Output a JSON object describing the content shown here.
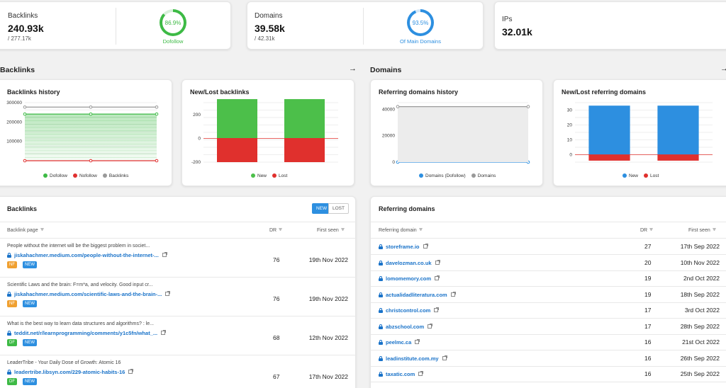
{
  "stats": {
    "backlinks": {
      "label": "Backlinks",
      "value": "240.93k",
      "sub": "/ 277.17k",
      "ring_value": "86.9%",
      "ring_label": "Dofollow",
      "ring_fraction": 0.869,
      "ring_color": "#3dba45"
    },
    "domains": {
      "label": "Domains",
      "value": "39.58k",
      "sub": "/ 42.31k",
      "ring_value": "93.5%",
      "ring_label": "Of Main Domains",
      "ring_fraction": 0.935,
      "ring_color": "#2d8fe0"
    },
    "ips": {
      "label": "IPs",
      "value": "32.01k"
    }
  },
  "sections": {
    "backlinks": {
      "title": "Backlinks",
      "arrow": "→"
    },
    "domains": {
      "title": "Domains",
      "arrow": "→"
    }
  },
  "cards": {
    "backlinks_history": {
      "title": "Backlinks history",
      "legend": [
        "Dofollow",
        "Nofollow",
        "Backlinks"
      ]
    },
    "new_lost_backlinks": {
      "title": "New/Lost backlinks",
      "legend": [
        "New",
        "Lost"
      ]
    },
    "referring_history": {
      "title": "Referring domains history",
      "legend": [
        "Domains (Dofollow)",
        "Domains"
      ]
    },
    "new_lost_referring": {
      "title": "New/Lost referring domains",
      "legend": [
        "New",
        "Lost"
      ]
    }
  },
  "chart_data": [
    {
      "type": "area",
      "title": "Backlinks history",
      "ylim": [
        0,
        300000
      ],
      "yticks": [
        "300000",
        "200000",
        "100000"
      ],
      "series": [
        {
          "name": "Dofollow",
          "values": [
            241000,
            241000,
            241000
          ],
          "color": "#3dba45"
        },
        {
          "name": "Nofollow",
          "values": [
            0,
            0,
            0
          ],
          "color": "#e03030"
        },
        {
          "name": "Backlinks",
          "values": [
            277000,
            277000,
            277000
          ],
          "color": "#999999"
        }
      ]
    },
    {
      "type": "bar",
      "title": "New/Lost backlinks",
      "ylim": [
        -200,
        300
      ],
      "yticks": [
        "200",
        "0",
        "-200"
      ],
      "series": [
        {
          "name": "New",
          "values": [
            330,
            330
          ],
          "color": "#4cbf4a"
        },
        {
          "name": "Lost",
          "values": [
            -200,
            -200
          ],
          "color": "#e0302d"
        }
      ]
    },
    {
      "type": "area",
      "title": "Referring domains history",
      "ylim": [
        0,
        45000
      ],
      "yticks": [
        "40000",
        "20000",
        "0"
      ],
      "series": [
        {
          "name": "Domains (Dofollow)",
          "values": [
            0,
            0
          ],
          "color": "#2d8fe0"
        },
        {
          "name": "Domains",
          "values": [
            42000,
            42000
          ],
          "color": "#999999"
        }
      ]
    },
    {
      "type": "bar",
      "title": "New/Lost referring domains",
      "ylim": [
        -5,
        35
      ],
      "yticks": [
        "30",
        "20",
        "10",
        "0"
      ],
      "series": [
        {
          "name": "New",
          "values": [
            33,
            33
          ],
          "color": "#2d8fe0"
        },
        {
          "name": "Lost",
          "values": [
            -4,
            -4
          ],
          "color": "#e0302d"
        }
      ]
    }
  ],
  "backlinks_table": {
    "title": "Backlinks",
    "toggle_new": "NEW",
    "toggle_lost": "LOST",
    "columns": [
      "Backlink page",
      "DR",
      "First seen"
    ],
    "rows": [
      {
        "title": "People without the internet will be the biggest problem in societ...",
        "url": "jiskahachmer.medium.com/people-without-the-internet-...",
        "badges": [
          "NF",
          "NEW"
        ],
        "dr": "76",
        "date": "19th Nov 2022"
      },
      {
        "title": "Scientific Laws and the brain: F=m*a, and velocity. Good input cr...",
        "url": "jiskahachmer.medium.com/scientific-laws-and-the-brain-...",
        "badges": [
          "NF",
          "NEW"
        ],
        "dr": "76",
        "date": "19th Nov 2022"
      },
      {
        "title": "What is the best way to learn data structures and algorithms? : le...",
        "url": "teddit.net/r/learnprogramming/comments/y1c5fn/what_...",
        "badges": [
          "DF",
          "NEW"
        ],
        "dr": "68",
        "date": "12th Nov 2022"
      },
      {
        "title": "LeaderTribe - Your Daily Dose of Growth: Atomic 16",
        "url": "leadertribe.libsyn.com/229-atomic-habits-16",
        "badges": [
          "DF",
          "NEW"
        ],
        "dr": "67",
        "date": "17th Nov 2022"
      }
    ]
  },
  "referring_table": {
    "title": "Referring domains",
    "columns": [
      "Referring domain",
      "DR",
      "First seen"
    ],
    "rows": [
      {
        "domain": "storeframe.io",
        "dr": "27",
        "date": "17th Sep 2022"
      },
      {
        "domain": "davelozman.co.uk",
        "dr": "20",
        "date": "10th Nov 2022"
      },
      {
        "domain": "lomomemory.com",
        "dr": "19",
        "date": "2nd Oct 2022"
      },
      {
        "domain": "actualidadliteratura.com",
        "dr": "19",
        "date": "18th Sep 2022"
      },
      {
        "domain": "christcontrol.com",
        "dr": "17",
        "date": "3rd Oct 2022"
      },
      {
        "domain": "abzschool.com",
        "dr": "17",
        "date": "28th Sep 2022"
      },
      {
        "domain": "peelmc.ca",
        "dr": "16",
        "date": "21st Oct 2022"
      },
      {
        "domain": "leadinstitute.com.my",
        "dr": "16",
        "date": "26th Sep 2022"
      },
      {
        "domain": "taxatic.com",
        "dr": "16",
        "date": "25th Sep 2022"
      }
    ]
  },
  "colors": {
    "nf_badge": "#f0a030",
    "df_badge": "#3dba45",
    "new_badge": "#2d8fe0",
    "link": "#1a73c9"
  }
}
